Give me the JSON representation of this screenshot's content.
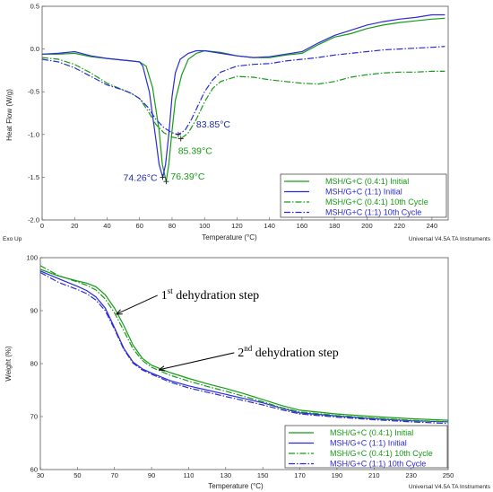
{
  "chart_data": [
    {
      "type": "line",
      "title": "",
      "xlabel": "Temperature (°C)",
      "ylabel": "Heat Flow (W/g)",
      "xlim": [
        0,
        250
      ],
      "ylim": [
        -2.0,
        0.5
      ],
      "xticks": [
        "0",
        "20",
        "40",
        "60",
        "80",
        "100",
        "120",
        "140",
        "160",
        "180",
        "200",
        "220",
        "240"
      ],
      "xtick_values": [
        0,
        20,
        40,
        60,
        80,
        100,
        120,
        140,
        160,
        180,
        200,
        220,
        240
      ],
      "yticks": [
        "0.5",
        "0.0",
        "-0.5",
        "-1.0",
        "-1.5",
        "-2.0"
      ],
      "ytick_values": [
        0.5,
        0.0,
        -0.5,
        -1.0,
        -1.5,
        -2.0
      ],
      "footer_left": "Exo Up",
      "footer_right": "Universal V4.5A TA Instruments",
      "legend_position": "bottom-right",
      "series": [
        {
          "name": "MSH/G+C (0.4:1) Initial",
          "color": "#169a16",
          "style": "solid",
          "x": [
            0,
            10,
            20,
            30,
            40,
            50,
            55,
            60,
            64,
            68,
            72,
            74,
            76.4,
            78,
            80,
            82,
            86,
            90,
            95,
            100,
            110,
            120,
            130,
            140,
            150,
            160,
            170,
            180,
            190,
            200,
            210,
            220,
            230,
            240,
            248
          ],
          "y": [
            -0.06,
            -0.06,
            -0.05,
            -0.09,
            -0.11,
            -0.13,
            -0.14,
            -0.15,
            -0.2,
            -0.45,
            -0.95,
            -1.35,
            -1.55,
            -1.35,
            -0.95,
            -0.6,
            -0.3,
            -0.12,
            -0.05,
            -0.02,
            -0.04,
            -0.08,
            -0.1,
            -0.1,
            -0.07,
            -0.05,
            0.05,
            0.14,
            0.18,
            0.24,
            0.28,
            0.31,
            0.33,
            0.35,
            0.36
          ]
        },
        {
          "name": "MSH/G+C (1:1) Initial",
          "color": "#2a2ad6",
          "style": "solid",
          "x": [
            0,
            10,
            20,
            30,
            40,
            50,
            55,
            60,
            62,
            66,
            70,
            72,
            74.3,
            76,
            78,
            80,
            82,
            85,
            90,
            95,
            100,
            110,
            120,
            130,
            140,
            150,
            160,
            170,
            180,
            190,
            200,
            210,
            220,
            230,
            240,
            248
          ],
          "y": [
            -0.06,
            -0.05,
            -0.03,
            -0.08,
            -0.11,
            -0.13,
            -0.14,
            -0.15,
            -0.2,
            -0.5,
            -1.05,
            -1.35,
            -1.5,
            -1.35,
            -1.0,
            -0.55,
            -0.28,
            -0.12,
            -0.05,
            -0.02,
            -0.02,
            -0.05,
            -0.08,
            -0.1,
            -0.09,
            -0.06,
            -0.03,
            0.07,
            0.16,
            0.22,
            0.28,
            0.32,
            0.35,
            0.37,
            0.4,
            0.4
          ]
        },
        {
          "name": "MSH/G+C (0.4:1) 10th Cycle",
          "color": "#169a16",
          "style": "dashdot",
          "x": [
            0,
            10,
            20,
            30,
            40,
            50,
            55,
            60,
            65,
            70,
            75,
            80,
            85.4,
            90,
            95,
            100,
            105,
            110,
            120,
            130,
            140,
            150,
            160,
            170,
            180,
            190,
            200,
            210,
            220,
            230,
            240,
            248
          ],
          "y": [
            -0.1,
            -0.12,
            -0.18,
            -0.28,
            -0.4,
            -0.48,
            -0.52,
            -0.58,
            -0.72,
            -0.88,
            -0.98,
            -1.03,
            -1.05,
            -0.98,
            -0.82,
            -0.62,
            -0.46,
            -0.38,
            -0.32,
            -0.33,
            -0.36,
            -0.38,
            -0.4,
            -0.41,
            -0.38,
            -0.33,
            -0.3,
            -0.28,
            -0.27,
            -0.27,
            -0.26,
            -0.26
          ]
        },
        {
          "name": "MSH/G+C (1:1) 10th Cycle",
          "color": "#2a2ad6",
          "style": "dashdot",
          "x": [
            0,
            10,
            20,
            30,
            40,
            50,
            55,
            60,
            65,
            70,
            75,
            80,
            83.9,
            88,
            92,
            96,
            100,
            105,
            110,
            120,
            130,
            140,
            150,
            160,
            170,
            180,
            190,
            200,
            210,
            220,
            230,
            240,
            248
          ],
          "y": [
            -0.12,
            -0.15,
            -0.22,
            -0.32,
            -0.42,
            -0.48,
            -0.52,
            -0.58,
            -0.68,
            -0.82,
            -0.92,
            -0.98,
            -1.0,
            -0.95,
            -0.82,
            -0.66,
            -0.5,
            -0.36,
            -0.27,
            -0.2,
            -0.18,
            -0.17,
            -0.14,
            -0.12,
            -0.1,
            -0.07,
            -0.05,
            -0.03,
            -0.01,
            0.0,
            0.01,
            0.02,
            0.03
          ]
        }
      ],
      "annotations": [
        {
          "text": "83.85°C",
          "color": "#1f2aa8",
          "x": 83.85,
          "y": -1.0
        },
        {
          "text": "85.39°C",
          "color": "#169a16",
          "x": 85.39,
          "y": -1.05
        },
        {
          "text": "74.26°C",
          "color": "#1f2aa8",
          "x": 74.26,
          "y": -1.5
        },
        {
          "text": "76.39°C",
          "color": "#169a16",
          "x": 76.39,
          "y": -1.55
        }
      ]
    },
    {
      "type": "line",
      "title": "",
      "xlabel": "Temperature (°C)",
      "ylabel": "Weight (%)",
      "xlim": [
        30,
        250
      ],
      "ylim": [
        60,
        100
      ],
      "xticks": [
        "30",
        "50",
        "70",
        "90",
        "110",
        "130",
        "150",
        "170",
        "190",
        "210",
        "230",
        "250"
      ],
      "xtick_values": [
        30,
        50,
        70,
        90,
        110,
        130,
        150,
        170,
        190,
        210,
        230,
        250
      ],
      "yticks": [
        "100",
        "90",
        "80",
        "70",
        "60"
      ],
      "ytick_values": [
        100,
        90,
        80,
        70,
        60
      ],
      "footer_right": "Universal V4.5A TA Instruments",
      "legend_position": "bottom-right",
      "series": [
        {
          "name": "MSH/G+C (0.4:1) Initial",
          "color": "#169a16",
          "style": "solid",
          "x": [
            30,
            40,
            50,
            55,
            60,
            65,
            70,
            75,
            80,
            85,
            90,
            100,
            110,
            120,
            130,
            140,
            150,
            160,
            170,
            190,
            210,
            230,
            250
          ],
          "y": [
            97.8,
            96.5,
            95.6,
            95.2,
            94.5,
            93.0,
            90.5,
            87.2,
            83.5,
            81.0,
            79.7,
            78.3,
            77.2,
            76.2,
            75.3,
            74.3,
            73.2,
            72.1,
            71.2,
            70.5,
            70.0,
            69.6,
            69.3
          ]
        },
        {
          "name": "MSH/G+C (1:1) Initial",
          "color": "#2a2ad6",
          "style": "solid",
          "x": [
            30,
            40,
            50,
            55,
            60,
            65,
            70,
            75,
            80,
            85,
            90,
            100,
            110,
            120,
            130,
            140,
            150,
            160,
            170,
            190,
            210,
            230,
            250
          ],
          "y": [
            97.5,
            96.0,
            94.6,
            93.8,
            92.6,
            90.5,
            86.8,
            82.9,
            80.3,
            79.0,
            78.2,
            76.8,
            75.8,
            75.0,
            74.2,
            73.4,
            72.6,
            71.6,
            70.7,
            70.1,
            69.6,
            69.2,
            69.0
          ]
        },
        {
          "name": "MSH/G+C (0.4:1) 10th Cycle",
          "color": "#169a16",
          "style": "dashdot",
          "x": [
            30,
            40,
            50,
            55,
            60,
            65,
            70,
            75,
            80,
            85,
            90,
            100,
            110,
            120,
            130,
            140,
            150,
            160,
            170,
            190,
            210,
            230,
            250
          ],
          "y": [
            98.5,
            96.6,
            95.4,
            94.8,
            93.9,
            92.2,
            89.6,
            86.2,
            82.8,
            80.6,
            79.3,
            77.8,
            76.7,
            75.7,
            74.8,
            73.8,
            72.8,
            71.7,
            70.9,
            70.2,
            69.7,
            69.3,
            69.0
          ]
        },
        {
          "name": "MSH/G+C (1:1) 10th Cycle",
          "color": "#2a2ad6",
          "style": "dashdot",
          "x": [
            30,
            40,
            50,
            55,
            60,
            65,
            70,
            75,
            80,
            85,
            90,
            100,
            110,
            120,
            130,
            140,
            150,
            160,
            170,
            190,
            210,
            230,
            250
          ],
          "y": [
            97.2,
            95.3,
            94.0,
            93.2,
            92.0,
            90.0,
            86.5,
            82.7,
            80.1,
            78.8,
            78.0,
            76.5,
            75.4,
            74.6,
            73.8,
            73.0,
            72.2,
            71.3,
            70.5,
            69.9,
            69.4,
            69.0,
            68.7
          ]
        }
      ],
      "annotations": [
        {
          "ordinal": "1",
          "sup": "st",
          "text": " dehydration step",
          "x": 70,
          "y": 89.5
        },
        {
          "ordinal": "2",
          "sup": "nd",
          "text": " dehydration step",
          "x": 93,
          "y": 79.0
        }
      ]
    }
  ]
}
